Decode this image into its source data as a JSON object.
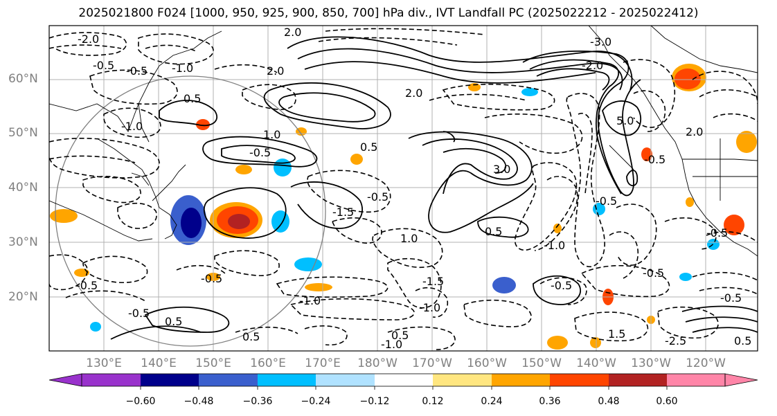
{
  "title": "2025021800 F024 [1000, 950, 925, 900, 850, 700] hPa div., IVT Landfall PC (2025022212 - 2025022412)",
  "lat_labels": [
    "60°N",
    "50°N",
    "40°N",
    "30°N",
    "20°N"
  ],
  "lon_labels": [
    "130°E",
    "140°E",
    "150°E",
    "160°E",
    "170°E",
    "180°W",
    "170°W",
    "160°W",
    "150°W",
    "140°W",
    "130°W",
    "120°W"
  ],
  "colorbar": {
    "tick_labels": [
      "−0.60",
      "−0.48",
      "−0.36",
      "−0.24",
      "−0.12",
      "0.12",
      "0.24",
      "0.36",
      "0.48",
      "0.60"
    ],
    "colors": [
      "#9932cc",
      "#00008b",
      "#3a5fcd",
      "#00bfff",
      "#b0e2ff",
      "#ffffff",
      "#ffe680",
      "#ffa500",
      "#ff4500",
      "#b22222",
      "#ff85a8"
    ],
    "extend": "both"
  },
  "contour_labels": [
    "2.0",
    "-2.0",
    "-1.0",
    "-0.5",
    "0.5",
    "-1.5",
    "1.0",
    "1.5",
    "3.0",
    "5.0",
    "-2.5",
    "-3.0"
  ]
}
